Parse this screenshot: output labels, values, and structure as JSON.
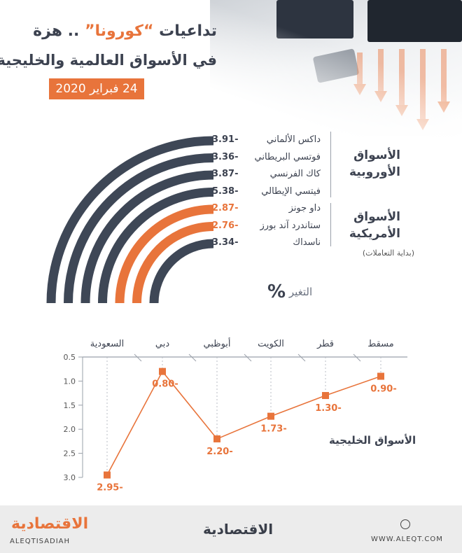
{
  "header": {
    "title_part1": "تداعيات",
    "title_highlight": "“كورونا”",
    "title_part2": ".. هزة",
    "subtitle": "في الأسواق العالمية والخليجية",
    "date": "24 فبراير 2020"
  },
  "western_markets": {
    "groups": [
      {
        "label_line1": "الأسواق",
        "label_line2": "الأوروبية"
      },
      {
        "label_line1": "الأسواق",
        "label_line2": "الأمريكية",
        "note": "(بداية التعاملات)"
      }
    ],
    "indices": [
      {
        "name": "داكس الألماني",
        "value": "3.91-",
        "group": "europe",
        "color": "#3e4756"
      },
      {
        "name": "فوتسي البريطاني",
        "value": "3.36-",
        "group": "europe",
        "color": "#3e4756"
      },
      {
        "name": "كاك الفرنسي",
        "value": "3.87-",
        "group": "europe",
        "color": "#3e4756"
      },
      {
        "name": "فيتسي الإيطالي",
        "value": "5.38-",
        "group": "europe",
        "color": "#3e4756"
      },
      {
        "name": "داو جونز",
        "value": "2.87-",
        "group": "us",
        "color": "#e8743b"
      },
      {
        "name": "ستاندرد آند بورز",
        "value": "2.76-",
        "group": "us",
        "color": "#e8743b"
      },
      {
        "name": "ناسداك",
        "value": "3.34-",
        "group": "us",
        "color": "#3e4756"
      }
    ],
    "change_label": "التغير",
    "change_symbol": "%"
  },
  "chart_data": {
    "type": "line",
    "categories": [
      "السعودية",
      "دبي",
      "أبوظبي",
      "الكويت",
      "قطر",
      "مسقط"
    ],
    "values": [
      -2.95,
      -0.8,
      -2.2,
      -1.73,
      -1.3,
      -0.9
    ],
    "data_labels": [
      "2.95-",
      "0.80-",
      "2.20-",
      "1.73-",
      "1.30-",
      "0.90-"
    ],
    "yticks": [
      "0.5",
      "1.0",
      "1.5",
      "2.0",
      "2.5",
      "3.0"
    ],
    "ylim": [
      -0.5,
      -3.0
    ],
    "series_label": "الأسواق الخليجية",
    "colors": {
      "line": "#e8743b",
      "marker": "#e8743b",
      "label": "#e8743b",
      "axis": "#9aa0aa"
    }
  },
  "footer": {
    "brand_arabic": "الاقتصادية",
    "brand_latin": "ALEQTISADIAH",
    "url": "WWW.ALEQT.COM"
  }
}
